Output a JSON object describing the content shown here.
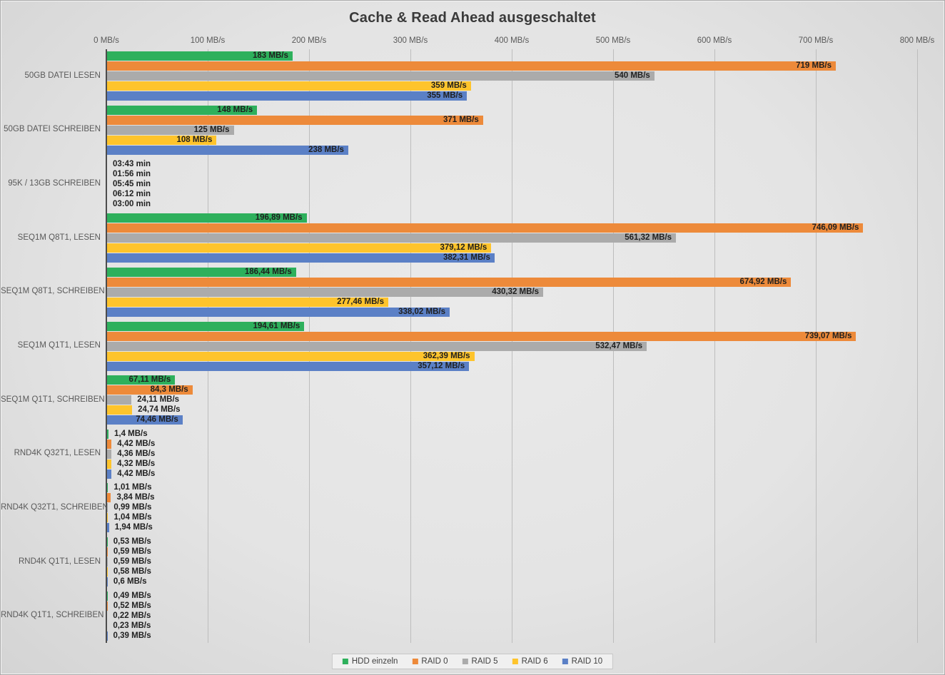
{
  "chart_data": {
    "type": "bar",
    "orientation": "horizontal",
    "title": "Cache & Read Ahead ausgeschaltet",
    "value_unit": "MB/s",
    "xlim": [
      0,
      800
    ],
    "x_ticks": [
      "0 MB/s",
      "100 MB/s",
      "200 MB/s",
      "300 MB/s",
      "400 MB/s",
      "500 MB/s",
      "600 MB/s",
      "700 MB/s",
      "800 MB/s"
    ],
    "grid": "vertical",
    "legend_position": "bottom-center",
    "series": [
      {
        "name": "HDD einzeln",
        "color": "#2eb05c"
      },
      {
        "name": "RAID 0",
        "color": "#ed8a3a"
      },
      {
        "name": "RAID 5",
        "color": "#ababab"
      },
      {
        "name": "RAID 6",
        "color": "#fec42c"
      },
      {
        "name": "RAID 10",
        "color": "#5b80c6"
      }
    ],
    "categories": [
      "50GB DATEI LESEN",
      "50GB DATEI SCHREIBEN",
      "95K / 13GB SCHREIBEN",
      "SEQ1M Q8T1, LESEN",
      "SEQ1M Q8T1, SCHREIBEN",
      "SEQ1M Q1T1, LESEN",
      "SEQ1M Q1T1, SCHREIBEN",
      "RND4K Q32T1, LESEN",
      "RND4K Q32T1, SCHREIBEN",
      "RND4K Q1T1, LESEN",
      "RND4K Q1T1, SCHREIBEN"
    ],
    "rows": [
      {
        "category": "50GB DATEI LESEN",
        "values": [
          183,
          719,
          540,
          359,
          355
        ],
        "labels": [
          "183 MB/s",
          "719 MB/s",
          "540 MB/s",
          "359 MB/s",
          "355 MB/s"
        ]
      },
      {
        "category": "50GB DATEI SCHREIBEN",
        "values": [
          148,
          371,
          125,
          108,
          238
        ],
        "labels": [
          "148 MB/s",
          "371 MB/s",
          "125 MB/s",
          "108 MB/s",
          "238 MB/s"
        ]
      },
      {
        "category": "95K / 13GB SCHREIBEN",
        "values": [
          null,
          null,
          null,
          null,
          null
        ],
        "labels": [
          "03:43 min",
          "01:56 min",
          "05:45 min",
          "06:12 min",
          "03:00 min"
        ]
      },
      {
        "category": "SEQ1M Q8T1, LESEN",
        "values": [
          196.89,
          746.09,
          561.32,
          379.12,
          382.31
        ],
        "labels": [
          "196,89 MB/s",
          "746,09 MB/s",
          "561,32 MB/s",
          "379,12 MB/s",
          "382,31 MB/s"
        ]
      },
      {
        "category": "SEQ1M Q8T1, SCHREIBEN",
        "values": [
          186.44,
          674.92,
          430.32,
          277.46,
          338.02
        ],
        "labels": [
          "186,44 MB/s",
          "674,92 MB/s",
          "430,32 MB/s",
          "277,46 MB/s",
          "338,02 MB/s"
        ]
      },
      {
        "category": "SEQ1M Q1T1, LESEN",
        "values": [
          194.61,
          739.07,
          532.47,
          362.39,
          357.12
        ],
        "labels": [
          "194,61 MB/s",
          "739,07 MB/s",
          "532,47 MB/s",
          "362,39 MB/s",
          "357,12 MB/s"
        ]
      },
      {
        "category": "SEQ1M Q1T1, SCHREIBEN",
        "values": [
          67.11,
          84.3,
          24.11,
          24.74,
          74.46
        ],
        "labels": [
          "67,11 MB/s",
          "84,3 MB/s",
          "24,11 MB/s",
          "24,74 MB/s",
          "74,46 MB/s"
        ]
      },
      {
        "category": "RND4K Q32T1, LESEN",
        "values": [
          1.4,
          4.42,
          4.36,
          4.32,
          4.42
        ],
        "labels": [
          "1,4 MB/s",
          "4,42 MB/s",
          "4,36 MB/s",
          "4,32 MB/s",
          "4,42 MB/s"
        ]
      },
      {
        "category": "RND4K Q32T1, SCHREIBEN",
        "values": [
          1.01,
          3.84,
          0.99,
          1.04,
          1.94
        ],
        "labels": [
          "1,01 MB/s",
          "3,84 MB/s",
          "0,99 MB/s",
          "1,04 MB/s",
          "1,94 MB/s"
        ]
      },
      {
        "category": "RND4K Q1T1, LESEN",
        "values": [
          0.53,
          0.59,
          0.59,
          0.58,
          0.6
        ],
        "labels": [
          "0,53 MB/s",
          "0,59 MB/s",
          "0,59 MB/s",
          "0,58 MB/s",
          "0,6 MB/s"
        ]
      },
      {
        "category": "RND4K Q1T1, SCHREIBEN",
        "values": [
          0.49,
          0.52,
          0.22,
          0.23,
          0.39
        ],
        "labels": [
          "0,49 MB/s",
          "0,52 MB/s",
          "0,22 MB/s",
          "0,23 MB/s",
          "0,39 MB/s"
        ]
      }
    ]
  }
}
